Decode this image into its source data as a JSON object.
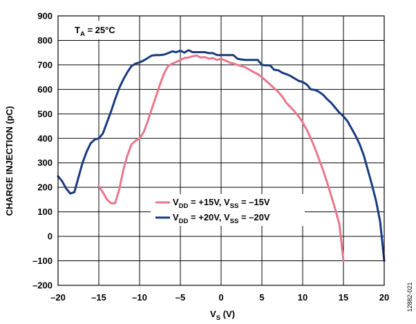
{
  "chart_data": {
    "type": "line",
    "title": "",
    "xlabel": {
      "main": "V",
      "sub": "S",
      "suffix": " (V)"
    },
    "ylabel": "CHARGE INJECTION (pC)",
    "xlim": [
      -20,
      20
    ],
    "ylim": [
      -200,
      900
    ],
    "xticks": [
      -20,
      -15,
      -10,
      -5,
      0,
      5,
      10,
      15,
      20
    ],
    "yticks": [
      -200,
      -100,
      0,
      100,
      200,
      300,
      400,
      500,
      600,
      700,
      800,
      900
    ],
    "xtick_labels": [
      "–20",
      "–15",
      "–10",
      "–5",
      "0",
      "5",
      "10",
      "15",
      "20"
    ],
    "ytick_labels": [
      "–200",
      "–100",
      "0",
      "100",
      "200",
      "300",
      "400",
      "500",
      "600",
      "700",
      "800",
      "900"
    ],
    "grid": true,
    "legend_placement": "center-right",
    "annotation": {
      "main": "T",
      "sub": "A",
      "suffix": " = 25°C"
    },
    "figure_id": "12882-021",
    "series": [
      {
        "name": {
          "p1": "V",
          "s1": "DD",
          "p2": " = +15V, V",
          "s2": "SS",
          "p3": " = –15V"
        },
        "color": "#e8768c",
        "x": [
          -15,
          -14.5,
          -14,
          -13.5,
          -13,
          -12.5,
          -12,
          -11.5,
          -11,
          -10.5,
          -10,
          -9.5,
          -9,
          -8.5,
          -8,
          -7.5,
          -7,
          -6.5,
          -6,
          -5.5,
          -5,
          -4.5,
          -4,
          -3.5,
          -3,
          -2.5,
          -2,
          -1.5,
          -1,
          -0.5,
          0,
          0.5,
          1,
          1.5,
          2,
          2.5,
          3,
          3.5,
          4,
          4.5,
          5,
          5.5,
          6,
          6.5,
          7,
          7.5,
          8,
          8.5,
          9,
          9.5,
          10,
          10.5,
          11,
          11.5,
          12,
          12.5,
          13,
          13.5,
          14,
          14.5,
          15
        ],
        "y": [
          205,
          180,
          150,
          135,
          135,
          190,
          270,
          330,
          375,
          390,
          400,
          425,
          470,
          520,
          570,
          620,
          665,
          695,
          705,
          712,
          720,
          728,
          730,
          735,
          738,
          730,
          732,
          725,
          728,
          720,
          725,
          718,
          710,
          705,
          700,
          695,
          690,
          680,
          670,
          662,
          650,
          635,
          620,
          605,
          590,
          570,
          545,
          528,
          510,
          490,
          465,
          435,
          400,
          360,
          315,
          270,
          220,
          165,
          110,
          50,
          -100
        ]
      },
      {
        "name": {
          "p1": "V",
          "s1": "DD",
          "p2": " = +20V, V",
          "s2": "SS",
          "p3": " = –20V"
        },
        "color": "#183a7e",
        "x": [
          -20,
          -19.5,
          -19,
          -18.5,
          -18,
          -17.5,
          -17,
          -16.5,
          -16,
          -15.5,
          -15,
          -14.5,
          -14,
          -13.5,
          -13,
          -12.5,
          -12,
          -11.5,
          -11,
          -10.5,
          -10,
          -9.5,
          -9,
          -8.5,
          -8,
          -7.5,
          -7,
          -6.5,
          -6,
          -5.5,
          -5,
          -4.5,
          -4,
          -3.5,
          -3,
          -2.5,
          -2,
          -1.5,
          -1,
          -0.5,
          0,
          0.5,
          1,
          1.5,
          2,
          2.5,
          3,
          3.5,
          4,
          4.5,
          5,
          5.5,
          6,
          6.5,
          7,
          7.5,
          8,
          8.5,
          9,
          9.5,
          10,
          10.5,
          11,
          11.5,
          12,
          12.5,
          13,
          13.5,
          14,
          14.5,
          15,
          15.5,
          16,
          16.5,
          17,
          17.5,
          18,
          18.5,
          19,
          19.5,
          20
        ],
        "y": [
          245,
          225,
          195,
          175,
          180,
          240,
          300,
          345,
          380,
          395,
          400,
          420,
          465,
          510,
          560,
          605,
          640,
          670,
          695,
          705,
          710,
          718,
          728,
          738,
          740,
          740,
          742,
          748,
          755,
          752,
          758,
          750,
          760,
          752,
          752,
          752,
          752,
          748,
          748,
          740,
          740,
          740,
          740,
          740,
          725,
          722,
          720,
          720,
          720,
          720,
          700,
          698,
          698,
          680,
          678,
          668,
          662,
          655,
          645,
          635,
          630,
          620,
          600,
          598,
          590,
          578,
          560,
          545,
          525,
          505,
          490,
          470,
          440,
          410,
          375,
          330,
          270,
          210,
          145,
          60,
          -100
        ]
      }
    ]
  }
}
